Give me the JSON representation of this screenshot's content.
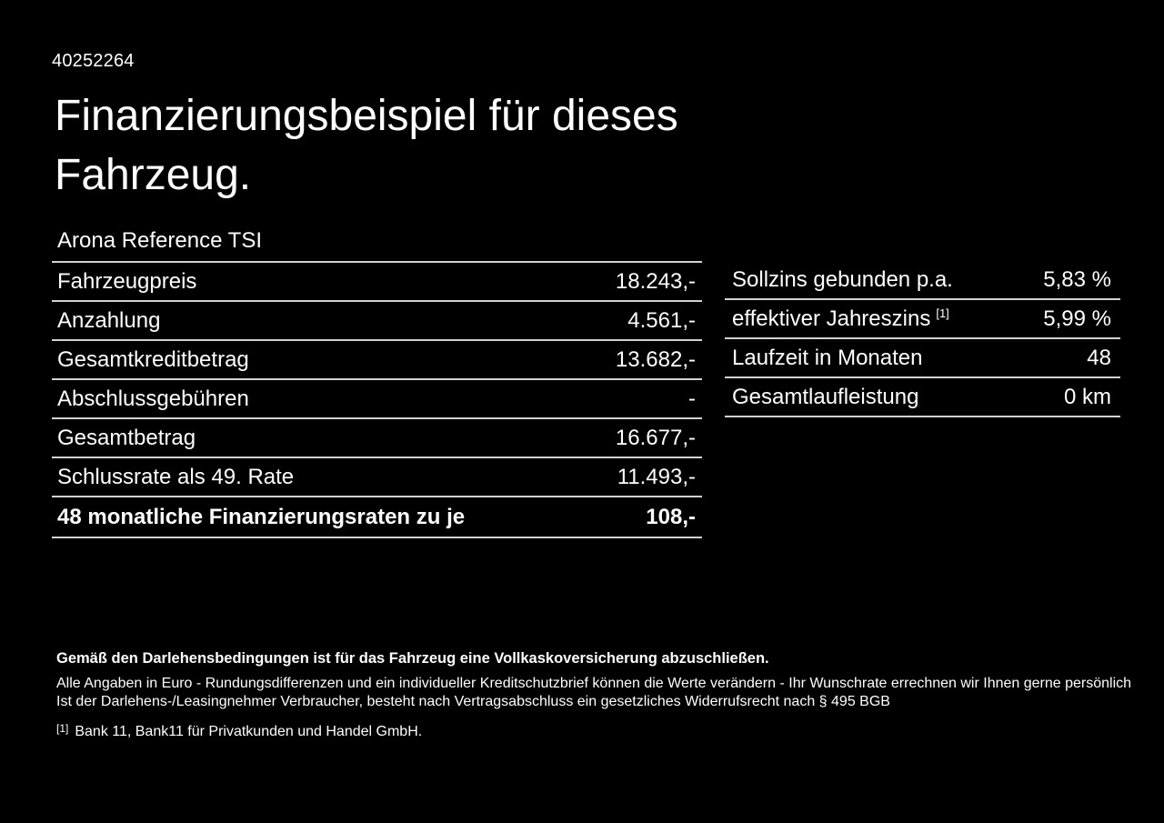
{
  "header": {
    "listing_id": "40252264",
    "title_line1": "Finanzierungsbeispiel für dieses",
    "title_line2": "Fahrzeug.",
    "vehicle_name": "Arona Reference TSI"
  },
  "financing_table": {
    "rows": [
      {
        "label": "Fahrzeugpreis",
        "value": "18.243,-"
      },
      {
        "label": "Anzahlung",
        "value": "4.561,-"
      },
      {
        "label": "Gesamtkreditbetrag",
        "value": "13.682,-"
      },
      {
        "label": "Abschlussgebühren",
        "value": "-"
      },
      {
        "label": "Gesamtbetrag",
        "value": "16.677,-"
      },
      {
        "label": "Schlussrate als 49. Rate",
        "value": "11.493,-"
      },
      {
        "label": "48 monatliche Finanzierungsraten zu je",
        "value": "108,-"
      }
    ]
  },
  "conditions_table": {
    "rows": [
      {
        "label": "Sollzins gebunden p.a.",
        "value": "5,83 %"
      },
      {
        "label": "effektiver Jahreszins",
        "sup": "[1]",
        "value": "5,99 %"
      },
      {
        "label": "Laufzeit in Monaten",
        "value": "48"
      },
      {
        "label": "Gesamtlaufleistung",
        "value": "0 km"
      }
    ]
  },
  "notes": {
    "insurance": "Gemäß den Darlehensbedingungen ist für das Fahrzeug eine Vollkaskoversicherung abzuschließen.",
    "disclaimer": "Alle Angaben in Euro - Rundungsdifferenzen und ein individueller Kreditschutzbrief können die Werte verändern - Ihr Wunschrate errechnen wir Ihnen gerne persönlich",
    "withdrawal": "Ist der Darlehens-/Leasingnehmer Verbraucher, besteht nach Vertragsabschluss ein gesetzliches Widerrufsrecht nach § 495 BGB",
    "bank_marker": "[1]",
    "bank_text": "Bank 11, Bank11 für Privatkunden und Handel GmbH."
  },
  "colors": {
    "background": "#000000",
    "text": "#ffffff",
    "divider": "#d2d2d2"
  }
}
